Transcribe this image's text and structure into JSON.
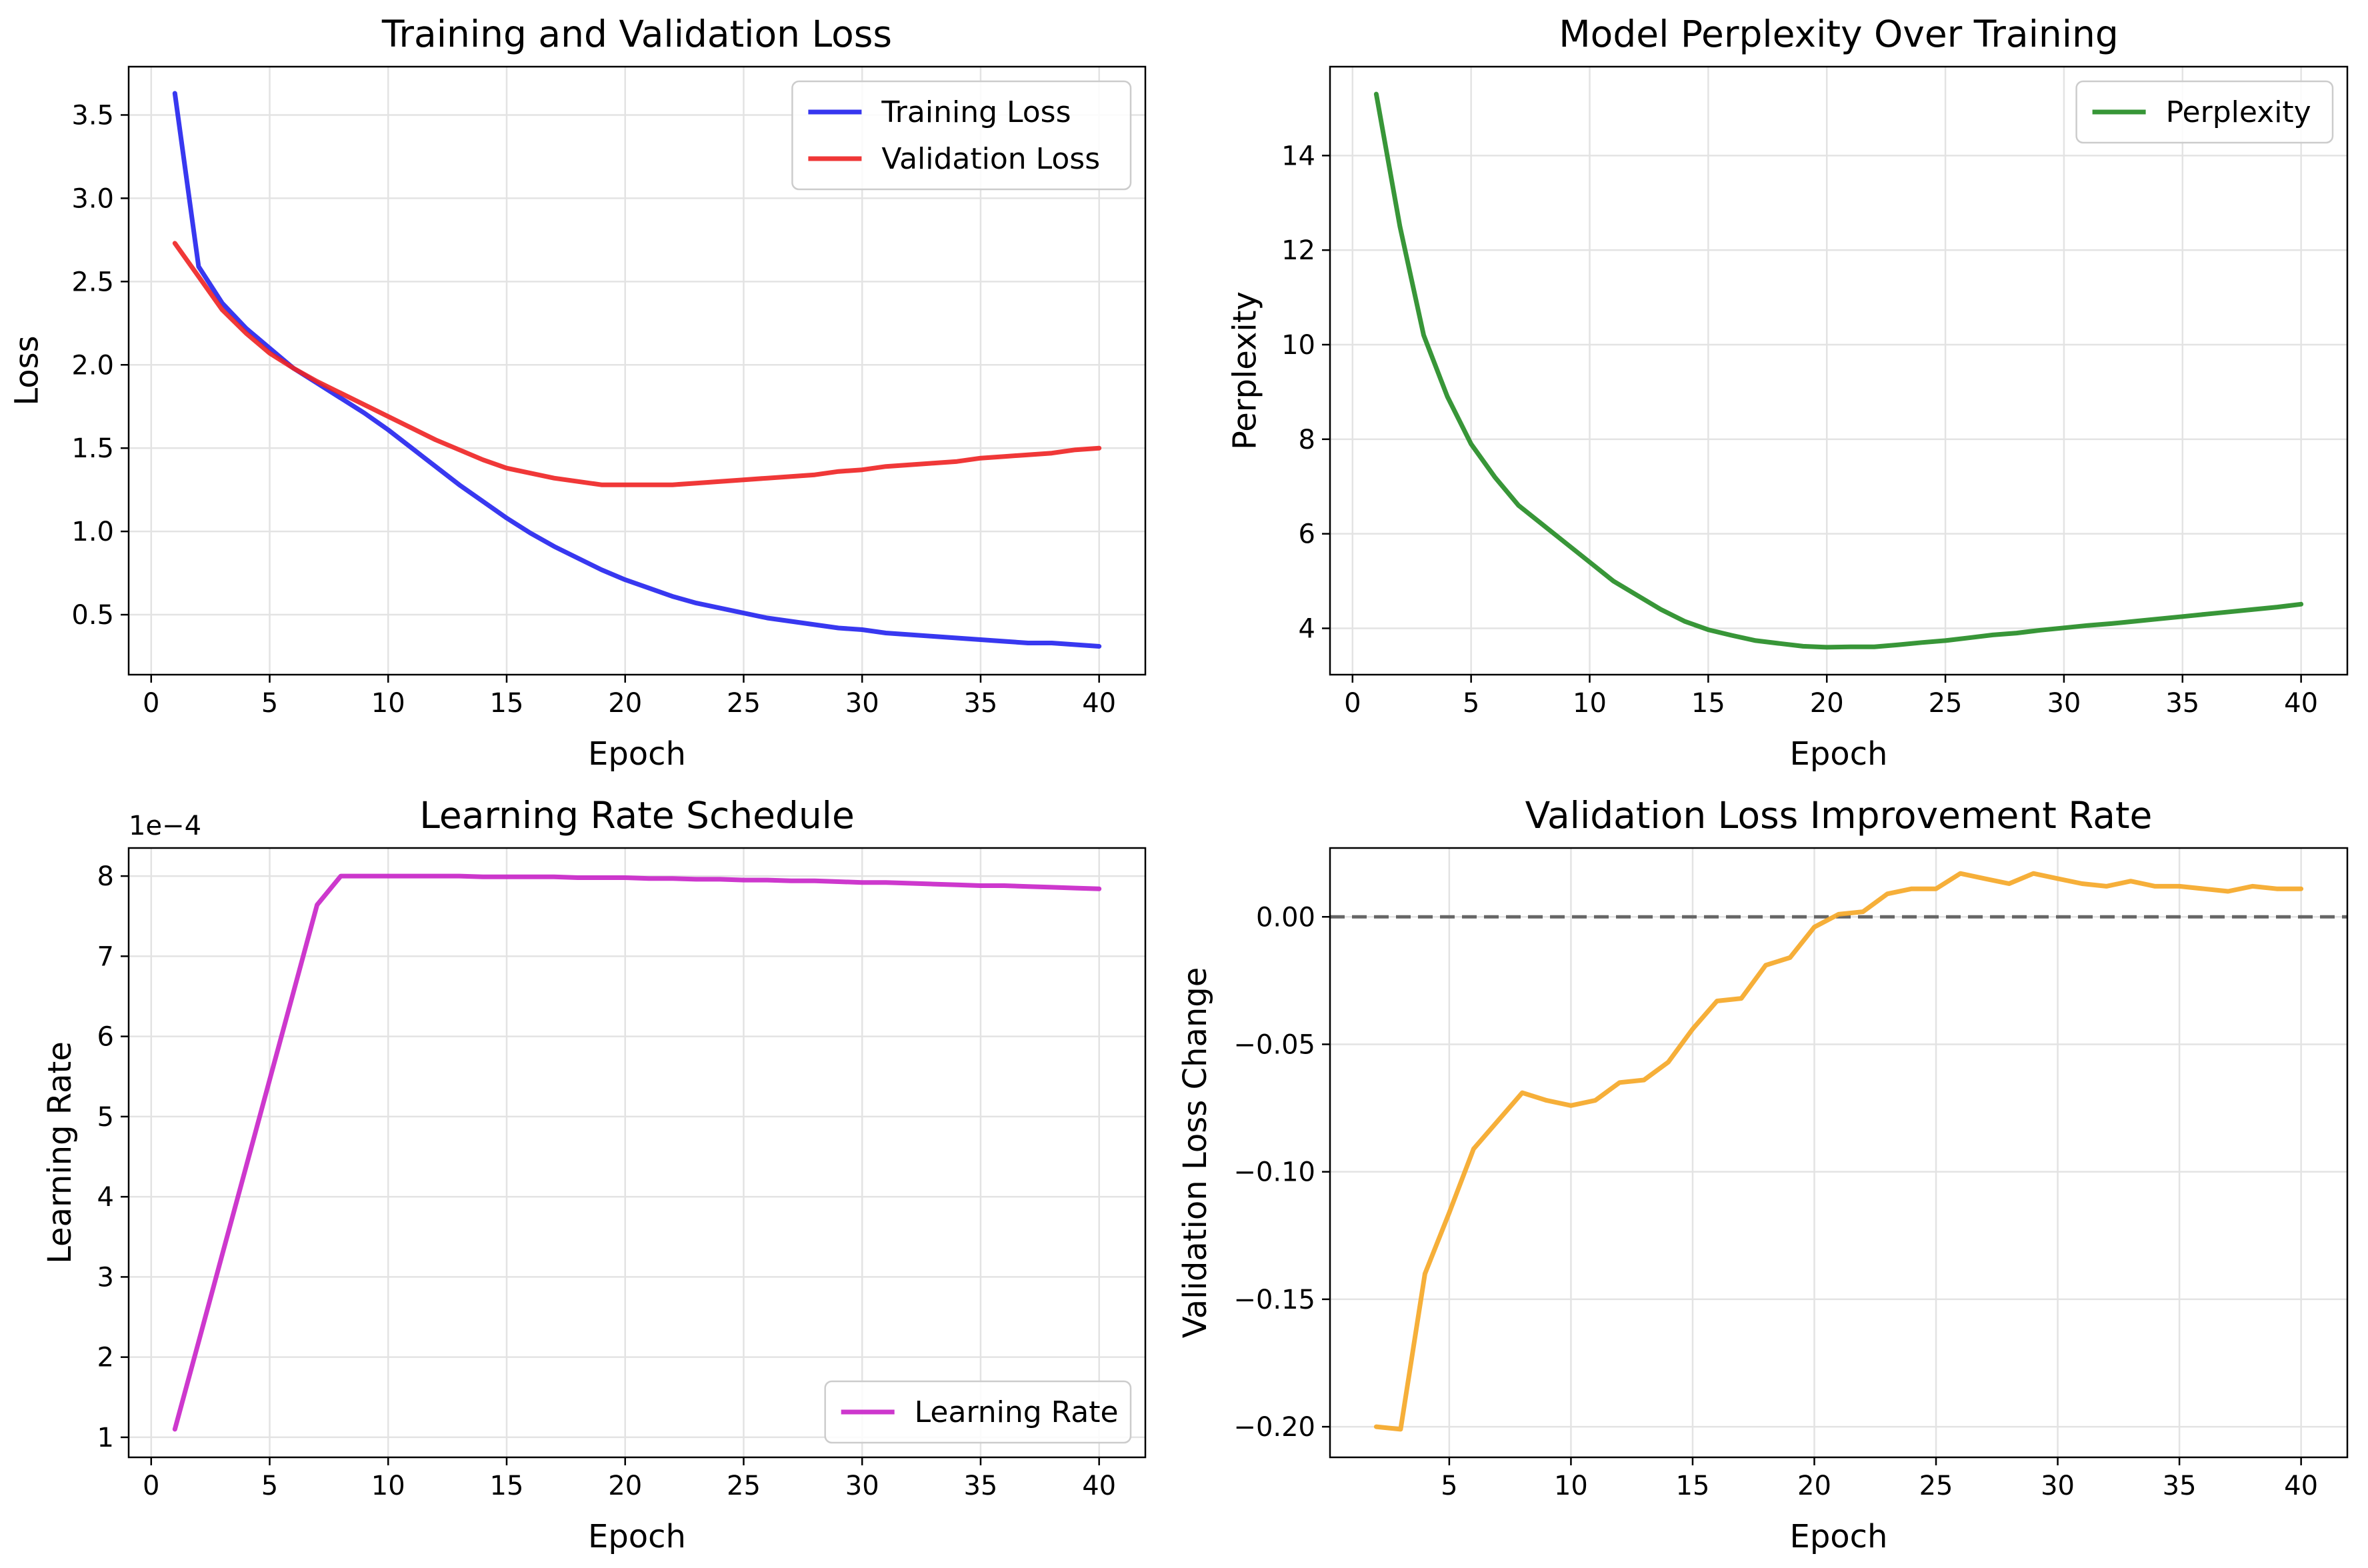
{
  "chart_data": [
    {
      "type": "line",
      "title": "Training and Validation Loss",
      "xlabel": "Epoch",
      "ylabel": "Loss",
      "xlim": [
        -0.95,
        41.95
      ],
      "ylim": [
        0.14,
        3.79
      ],
      "xticks": [
        0,
        5,
        10,
        15,
        20,
        25,
        30,
        35,
        40
      ],
      "yticks": [
        0.5,
        1.0,
        1.5,
        2.0,
        2.5,
        3.0,
        3.5
      ],
      "ytick_labels": [
        "0.5",
        "1.0",
        "1.5",
        "2.0",
        "2.5",
        "3.0",
        "3.5"
      ],
      "grid": true,
      "legend": "upper right",
      "series": [
        {
          "name": "Training Loss",
          "color": "#2222ee",
          "x": [
            1,
            2,
            3,
            4,
            5,
            6,
            7,
            8,
            9,
            10,
            11,
            12,
            13,
            14,
            15,
            16,
            17,
            18,
            19,
            20,
            21,
            22,
            23,
            24,
            25,
            26,
            27,
            28,
            29,
            30,
            31,
            32,
            33,
            34,
            35,
            36,
            37,
            38,
            39,
            40
          ],
          "y": [
            3.63,
            2.59,
            2.37,
            2.22,
            2.1,
            1.98,
            1.89,
            1.8,
            1.71,
            1.61,
            1.5,
            1.39,
            1.28,
            1.18,
            1.08,
            0.99,
            0.91,
            0.84,
            0.77,
            0.71,
            0.66,
            0.61,
            0.57,
            0.54,
            0.51,
            0.48,
            0.46,
            0.44,
            0.42,
            0.41,
            0.39,
            0.38,
            0.37,
            0.36,
            0.35,
            0.34,
            0.33,
            0.33,
            0.32,
            0.31
          ]
        },
        {
          "name": "Validation Loss",
          "color": "#ee2222",
          "x": [
            1,
            2,
            3,
            4,
            5,
            6,
            7,
            8,
            9,
            10,
            11,
            12,
            13,
            14,
            15,
            16,
            17,
            18,
            19,
            20,
            21,
            22,
            23,
            24,
            25,
            26,
            27,
            28,
            29,
            30,
            31,
            32,
            33,
            34,
            35,
            36,
            37,
            38,
            39,
            40
          ],
          "y": [
            2.73,
            2.53,
            2.33,
            2.19,
            2.07,
            1.98,
            1.9,
            1.83,
            1.76,
            1.69,
            1.62,
            1.55,
            1.49,
            1.43,
            1.38,
            1.35,
            1.32,
            1.3,
            1.28,
            1.28,
            1.28,
            1.28,
            1.29,
            1.3,
            1.31,
            1.32,
            1.33,
            1.34,
            1.36,
            1.37,
            1.39,
            1.4,
            1.41,
            1.42,
            1.44,
            1.45,
            1.46,
            1.47,
            1.49,
            1.5
          ]
        }
      ]
    },
    {
      "type": "line",
      "title": "Model Perplexity Over Training",
      "xlabel": "Epoch",
      "ylabel": "Perplexity",
      "xlim": [
        -0.95,
        41.95
      ],
      "ylim": [
        3.02,
        15.88
      ],
      "xticks": [
        0,
        5,
        10,
        15,
        20,
        25,
        30,
        35,
        40
      ],
      "yticks": [
        4,
        6,
        8,
        10,
        12,
        14
      ],
      "ytick_labels": [
        "4",
        "6",
        "8",
        "10",
        "12",
        "14"
      ],
      "grid": true,
      "legend": "upper right",
      "series": [
        {
          "name": "Perplexity",
          "color": "#228b22",
          "x": [
            1,
            2,
            3,
            4,
            5,
            6,
            7,
            8,
            9,
            10,
            11,
            12,
            13,
            14,
            15,
            16,
            17,
            18,
            19,
            20,
            21,
            22,
            23,
            24,
            25,
            26,
            27,
            28,
            29,
            30,
            31,
            32,
            33,
            34,
            35,
            36,
            37,
            38,
            39,
            40
          ],
          "y": [
            15.3,
            12.5,
            10.2,
            8.9,
            7.9,
            7.2,
            6.6,
            6.2,
            5.8,
            5.4,
            5.0,
            4.7,
            4.4,
            4.15,
            3.97,
            3.85,
            3.74,
            3.68,
            3.62,
            3.6,
            3.61,
            3.61,
            3.65,
            3.7,
            3.74,
            3.8,
            3.86,
            3.9,
            3.96,
            4.01,
            4.06,
            4.1,
            4.15,
            4.2,
            4.25,
            4.3,
            4.35,
            4.4,
            4.45,
            4.51
          ]
        }
      ]
    },
    {
      "type": "line",
      "title": "Learning Rate Schedule",
      "xlabel": "Epoch",
      "ylabel": "Learning Rate",
      "offset_label": "1e−4",
      "xlim": [
        -0.95,
        41.95
      ],
      "ylim": [
        0.75,
        8.35
      ],
      "xticks": [
        0,
        5,
        10,
        15,
        20,
        25,
        30,
        35,
        40
      ],
      "yticks": [
        1,
        2,
        3,
        4,
        5,
        6,
        7,
        8
      ],
      "ytick_labels": [
        "1",
        "2",
        "3",
        "4",
        "5",
        "6",
        "7",
        "8"
      ],
      "grid": true,
      "legend": "lower right",
      "series": [
        {
          "name": "Learning Rate",
          "color": "#c822c8",
          "x": [
            1,
            2,
            3,
            4,
            5,
            6,
            7,
            8,
            9,
            10,
            11,
            12,
            13,
            14,
            15,
            16,
            17,
            18,
            19,
            20,
            21,
            22,
            23,
            24,
            25,
            26,
            27,
            28,
            29,
            30,
            31,
            32,
            33,
            34,
            35,
            36,
            37,
            38,
            39,
            40
          ],
          "y": [
            1.1,
            2.19,
            3.28,
            4.37,
            5.46,
            6.55,
            7.64,
            8.0,
            8.0,
            8.0,
            8.0,
            8.0,
            8.0,
            7.99,
            7.99,
            7.99,
            7.99,
            7.98,
            7.98,
            7.98,
            7.97,
            7.97,
            7.96,
            7.96,
            7.95,
            7.95,
            7.94,
            7.94,
            7.93,
            7.92,
            7.92,
            7.91,
            7.9,
            7.89,
            7.88,
            7.88,
            7.87,
            7.86,
            7.85,
            7.84
          ]
        }
      ]
    },
    {
      "type": "line",
      "title": "Validation Loss Improvement Rate",
      "xlabel": "Epoch",
      "ylabel": "Validation Loss Change",
      "xlim": [
        0.1,
        41.9
      ],
      "ylim": [
        -0.212,
        0.027
      ],
      "xticks": [
        5,
        10,
        15,
        20,
        25,
        30,
        35,
        40
      ],
      "yticks": [
        -0.2,
        -0.15,
        -0.1,
        -0.05,
        0.0
      ],
      "ytick_labels": [
        "−0.20",
        "−0.15",
        "−0.10",
        "−0.05",
        "0.00"
      ],
      "grid": true,
      "reference_line": {
        "y": 0,
        "style": "dashed",
        "color": "#666666"
      },
      "series": [
        {
          "color": "#f5a623",
          "x": [
            2,
            3,
            4,
            5,
            6,
            7,
            8,
            9,
            10,
            11,
            12,
            13,
            14,
            15,
            16,
            17,
            18,
            19,
            20,
            21,
            22,
            23,
            24,
            25,
            26,
            27,
            28,
            29,
            30,
            31,
            32,
            33,
            34,
            35,
            36,
            37,
            38,
            39,
            40
          ],
          "y": [
            -0.2,
            -0.201,
            -0.14,
            -0.116,
            -0.091,
            -0.08,
            -0.069,
            -0.072,
            -0.074,
            -0.072,
            -0.065,
            -0.064,
            -0.057,
            -0.044,
            -0.033,
            -0.032,
            -0.019,
            -0.016,
            -0.004,
            0.001,
            0.002,
            0.009,
            0.011,
            0.011,
            0.017,
            0.015,
            0.013,
            0.017,
            0.015,
            0.013,
            0.012,
            0.014,
            0.012,
            0.012,
            0.011,
            0.01,
            0.012,
            0.011,
            0.011
          ]
        }
      ]
    }
  ]
}
